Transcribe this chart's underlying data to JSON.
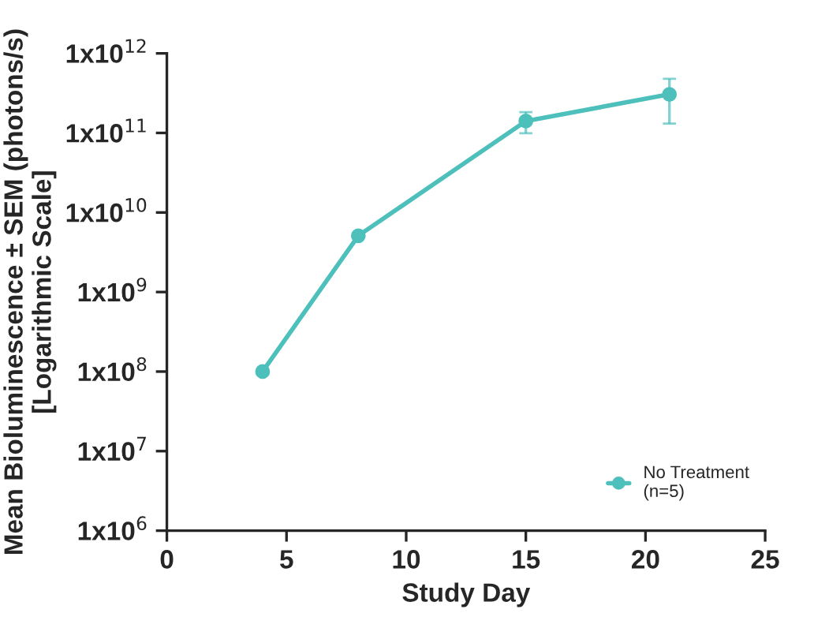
{
  "chart_data": {
    "type": "line",
    "xlabel": "Study Day",
    "ylabel": "Mean Bioluminescence ± SEM (photons/s)\n[Logarithmic Scale]",
    "x": [
      4,
      8,
      15,
      21
    ],
    "series": [
      {
        "name": "No Treatment\n(n=5)",
        "color": "#4dc0bc",
        "values": [
          100000000.0,
          5100000000.0,
          141000000000.0,
          306000000000.0
        ],
        "errors": [
          null,
          null,
          [
            99000000000.0,
            183000000000.0
          ],
          [
            131000000000.0,
            480000000000.0
          ]
        ]
      }
    ],
    "log": "y",
    "xlim": [
      0,
      25
    ],
    "xticks": [
      0,
      5,
      10,
      15,
      20,
      25
    ],
    "ylim": [
      1000000.0,
      1000000000000.0
    ],
    "yticks": [
      {
        "value": 1000000.0,
        "label": "1x10$^{6}$"
      },
      {
        "value": 10000000.0,
        "label": "1x10$^{7}$"
      },
      {
        "value": 100000000.0,
        "label": "1x10$^{8}$"
      },
      {
        "value": 1000000000.0,
        "label": "1x10$^{9}$"
      },
      {
        "value": 10000000000.0,
        "label": "1x10$^{10}$"
      },
      {
        "value": 100000000000.0,
        "label": "1x10$^{11}$"
      },
      {
        "value": 1000000000000.0,
        "label": "1x10$^{12}$"
      }
    ],
    "grid": false,
    "legend": "bottom right",
    "marker": "circle",
    "line_style": "solid"
  }
}
